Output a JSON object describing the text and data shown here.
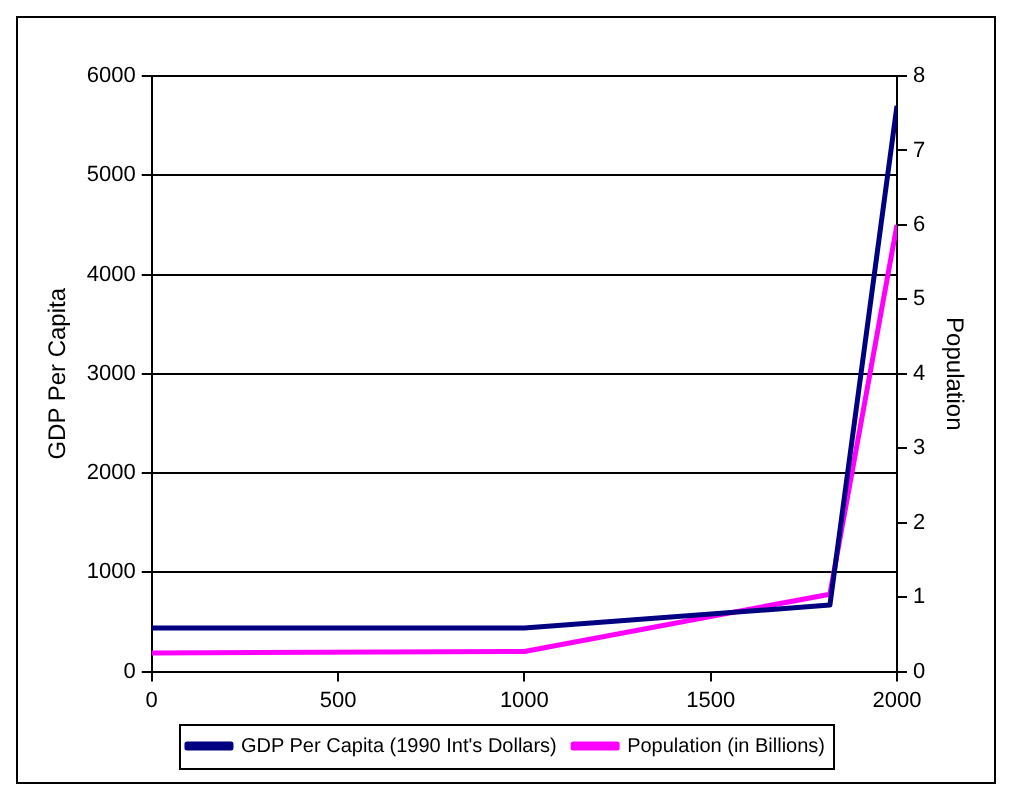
{
  "chart_data": {
    "type": "line",
    "ylabel": "GDP Per Capita",
    "y2label": "Population",
    "x": [
      0,
      1000,
      1820,
      2000
    ],
    "series": [
      {
        "name": "GDP Per Capita (1990 Int's Dollars)",
        "color": "#000080",
        "values": [
          440,
          440,
          670,
          5700
        ]
      },
      {
        "name": "Population (in Billions)",
        "color": "#ff00ff",
        "values": [
          0.25,
          0.27,
          1.04,
          6.0
        ],
        "axis": "y2"
      }
    ],
    "xlim": [
      0,
      2000
    ],
    "xticks": [
      0,
      500,
      1000,
      1500,
      2000
    ],
    "ylim": [
      0,
      6000
    ],
    "yticks": [
      0,
      1000,
      2000,
      3000,
      4000,
      5000,
      6000
    ],
    "y2lim": [
      0,
      8
    ],
    "y2ticks": [
      0,
      1,
      2,
      3,
      4,
      5,
      6,
      7,
      8
    ],
    "grid": "y",
    "legend": "bottom",
    "marker": "none",
    "line_style": "solid"
  }
}
